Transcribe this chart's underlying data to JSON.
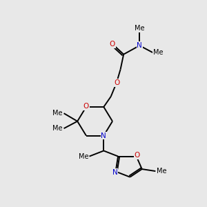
{
  "bg_color": "#e8e8e8",
  "bond_color": "#000000",
  "n_color": "#0000cc",
  "o_color": "#cc0000",
  "line_width": 1.4,
  "font_size": 7.5,
  "small_font_size": 7.0,
  "fig_size": [
    3.0,
    3.0
  ],
  "dpi": 100,
  "xlim": [
    0,
    10
  ],
  "ylim": [
    0,
    10
  ]
}
